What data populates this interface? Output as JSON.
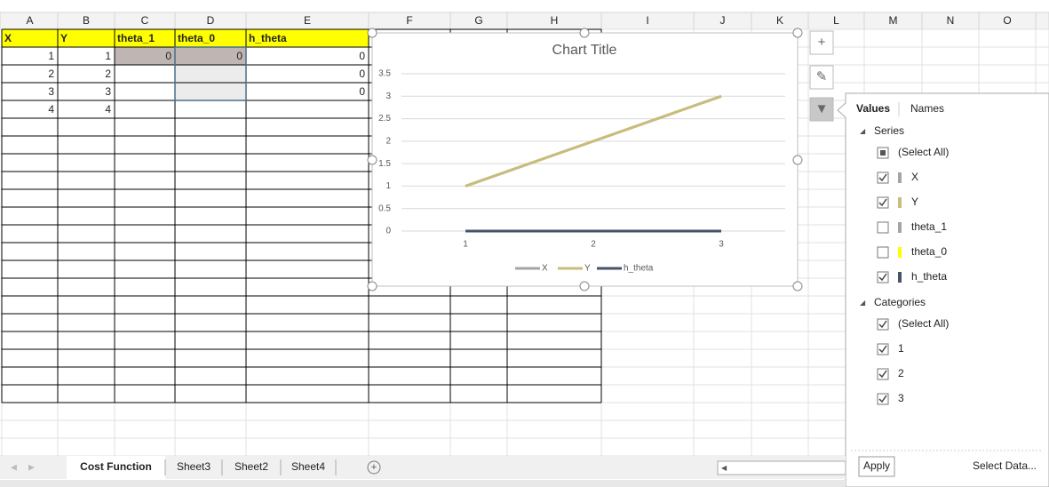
{
  "columns": [
    "A",
    "B",
    "C",
    "D",
    "E",
    "F",
    "G",
    "H",
    "I",
    "J",
    "K",
    "L",
    "M",
    "N",
    "O"
  ],
  "table": {
    "header": [
      "X",
      "Y",
      "theta_1",
      "theta_0",
      "h_theta"
    ],
    "rows": [
      [
        1,
        1,
        0,
        0,
        0
      ],
      [
        2,
        2,
        null,
        null,
        0
      ],
      [
        3,
        3,
        null,
        null,
        0
      ],
      [
        4,
        4,
        null,
        null,
        null
      ]
    ]
  },
  "chart": {
    "type": "line",
    "title": "Chart Title",
    "categories": [
      1,
      2,
      3
    ],
    "series": [
      {
        "name": "X",
        "color": "#a5a5a5",
        "values": [
          1,
          2,
          3
        ]
      },
      {
        "name": "Y",
        "color": "#c9bd7a",
        "values": [
          1,
          2,
          3
        ]
      },
      {
        "name": "h_theta",
        "color": "#44546a",
        "values": [
          0,
          0,
          0
        ]
      }
    ],
    "ylim": [
      0,
      3.5
    ],
    "yticks": [
      0,
      0.5,
      1,
      1.5,
      2,
      2.5,
      3,
      3.5
    ],
    "grid": true
  },
  "filter_panel": {
    "tabs": [
      "Values",
      "Names"
    ],
    "series_heading": "Series",
    "series_items": [
      {
        "label": "(Select All)",
        "state": "indeterminate"
      },
      {
        "label": "X",
        "state": "checked",
        "color": "#a5a5a5"
      },
      {
        "label": "Y",
        "state": "checked",
        "color": "#c9bd7a"
      },
      {
        "label": "theta_1",
        "state": "unchecked",
        "color": "#a5a5a5"
      },
      {
        "label": "theta_0",
        "state": "unchecked",
        "color": "#ffff00"
      },
      {
        "label": "h_theta",
        "state": "checked",
        "color": "#44546a"
      }
    ],
    "categories_heading": "Categories",
    "category_items": [
      {
        "label": "(Select All)",
        "state": "checked"
      },
      {
        "label": "1",
        "state": "checked"
      },
      {
        "label": "2",
        "state": "checked"
      },
      {
        "label": "3",
        "state": "checked"
      }
    ],
    "apply": "Apply",
    "select_data": "Select Data..."
  },
  "sheet_tabs": [
    "Cost Function",
    "Sheet3",
    "Sheet2",
    "Sheet4"
  ],
  "active_sheet": 0
}
